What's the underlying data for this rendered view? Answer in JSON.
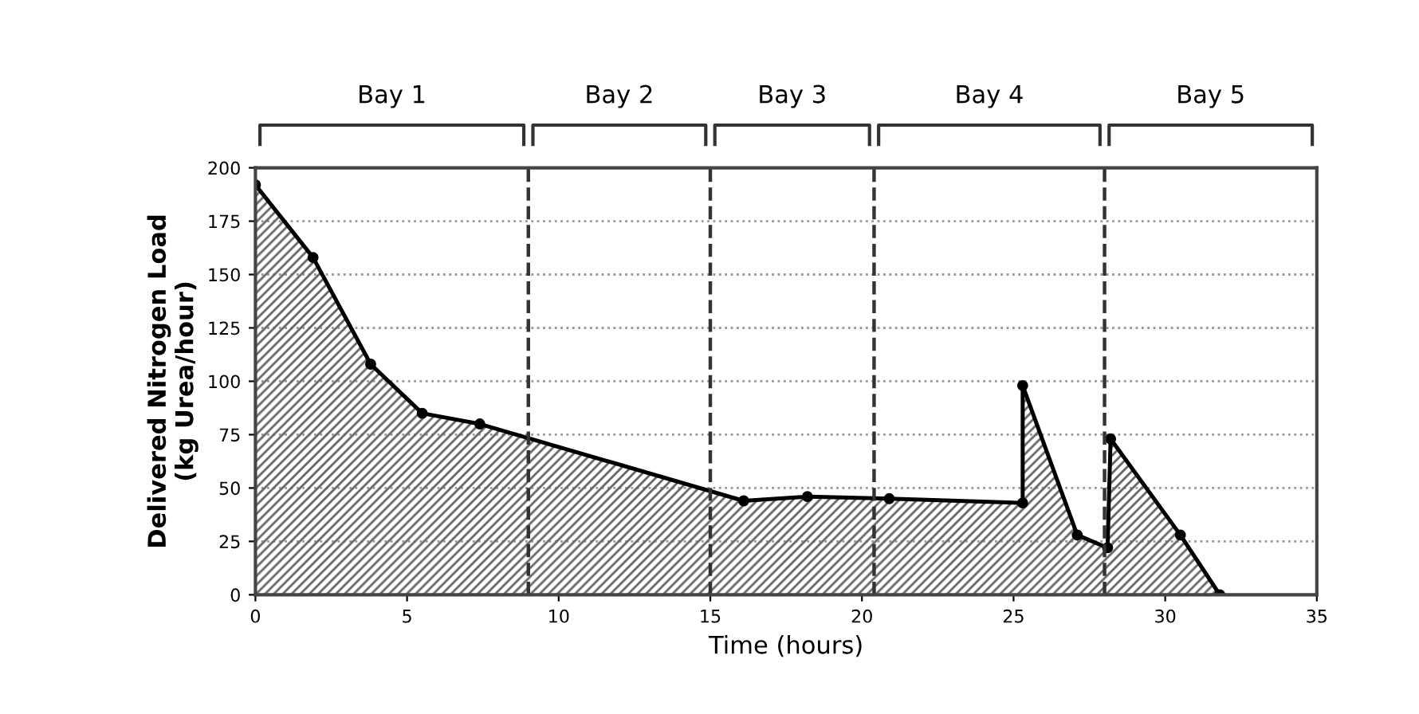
{
  "chart_data": {
    "type": "area",
    "xlabel": "Time (hours)",
    "ylabel": "Delivered Nitrogen Load\n(kg Urea/hour)",
    "series": [
      {
        "color": "#000000",
        "x": [
          0,
          1.9,
          3.8,
          5.5,
          7.4,
          16.1,
          18.2,
          20.9,
          25.3,
          25.3,
          27.1,
          28.1,
          28.2,
          30.5,
          31.8
        ],
        "values": [
          192,
          158,
          108,
          85,
          80,
          44,
          46,
          45,
          43,
          98,
          28,
          22,
          73,
          28,
          0
        ]
      }
    ],
    "xlim": [
      0,
      35
    ],
    "xticks": [
      0,
      5,
      10,
      15,
      20,
      25,
      30,
      35
    ],
    "ylim": [
      0,
      200
    ],
    "yticks": [
      0,
      25,
      50,
      75,
      100,
      125,
      150,
      175,
      200
    ],
    "grid": "y",
    "marker": "circle",
    "line_style": "solid",
    "ref_lines": [
      {
        "axis": "x",
        "value": 9,
        "line_style": "dashed"
      },
      {
        "axis": "x",
        "value": 15,
        "line_style": "dashed"
      },
      {
        "axis": "x",
        "value": 20.4,
        "line_style": "dashed"
      },
      {
        "axis": "x",
        "value": 28,
        "line_style": "dashed"
      }
    ],
    "annotations": [
      "Bay 1",
      "Bay 2",
      "Bay 3",
      "Bay 4",
      "Bay 5"
    ]
  }
}
